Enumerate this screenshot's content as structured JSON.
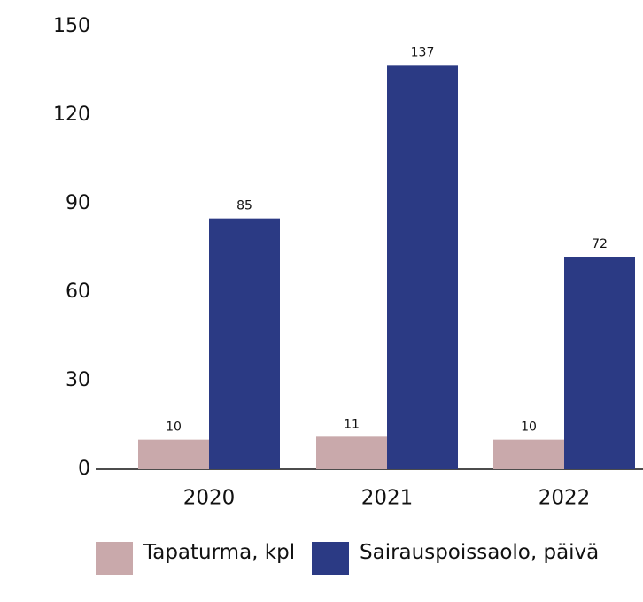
{
  "chart_data": {
    "type": "bar",
    "categories": [
      "2020",
      "2021",
      "2022"
    ],
    "series": [
      {
        "name": "Tapaturma, kpl",
        "color": "#c9a9ab",
        "values": [
          10,
          11,
          10
        ]
      },
      {
        "name": "Sairauspoissaolo, päivä",
        "color": "#2b3a84",
        "values": [
          85,
          137,
          72
        ]
      }
    ],
    "ylim": [
      0,
      150
    ],
    "yticks": [
      0,
      30,
      60,
      90,
      120,
      150
    ],
    "grid": false,
    "legend": "bottom"
  }
}
